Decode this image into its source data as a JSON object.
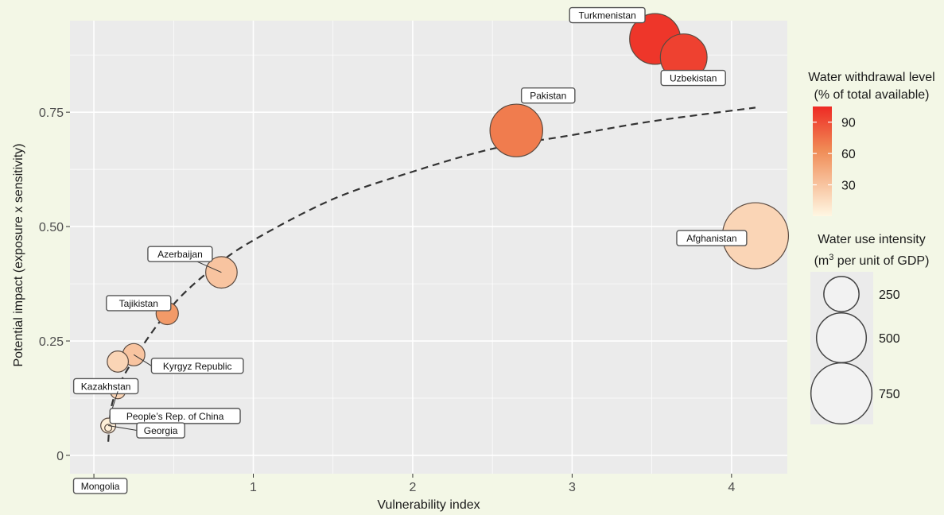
{
  "chart_data": {
    "type": "scatter",
    "xlabel": "Vulnerability index",
    "ylabel": "Potential impact (exposure x sensitivity)",
    "xlim": [
      -0.15,
      4.35
    ],
    "ylim": [
      -0.04,
      0.95
    ],
    "x_ticks": [
      {
        "value": 0,
        "label": "0"
      },
      {
        "value": 1,
        "label": "1"
      },
      {
        "value": 2,
        "label": "2"
      },
      {
        "value": 3,
        "label": "3"
      },
      {
        "value": 4,
        "label": "4"
      }
    ],
    "y_ticks": [
      {
        "value": 0,
        "label": "0"
      },
      {
        "value": 0.25,
        "label": "0.25"
      },
      {
        "value": 0.5,
        "label": "0.50"
      },
      {
        "value": 0.75,
        "label": "0.75"
      }
    ],
    "grid": true,
    "points": [
      {
        "label": "Turkmenistan",
        "x": 3.52,
        "y": 0.91,
        "withdrawal": 100,
        "intensity": 520
      },
      {
        "label": "Uzbekistan",
        "x": 3.7,
        "y": 0.87,
        "withdrawal": 95,
        "intensity": 440
      },
      {
        "label": "Pakistan",
        "x": 2.65,
        "y": 0.71,
        "withdrawal": 70,
        "intensity": 560
      },
      {
        "label": "Afghanistan",
        "x": 4.15,
        "y": 0.48,
        "withdrawal": 20,
        "intensity": 880
      },
      {
        "label": "Azerbaijan",
        "x": 0.8,
        "y": 0.4,
        "withdrawal": 30,
        "intensity": 200
      },
      {
        "label": "Tajikistan",
        "x": 0.46,
        "y": 0.31,
        "withdrawal": 55,
        "intensity": 100
      },
      {
        "label": "Kyrgyz Republic",
        "x": 0.25,
        "y": 0.22,
        "withdrawal": 30,
        "intensity": 100
      },
      {
        "label": "Kazakhstan",
        "x": 0.15,
        "y": 0.205,
        "withdrawal": 20,
        "intensity": 90
      },
      {
        "label": "People’s Rep. of China",
        "x": 0.15,
        "y": 0.14,
        "withdrawal": 20,
        "intensity": 45
      },
      {
        "label": "Georgia",
        "x": 0.09,
        "y": 0.065,
        "withdrawal": 5,
        "intensity": 45
      },
      {
        "label": "Mongolia",
        "x": 0.09,
        "y": 0.06,
        "withdrawal": 5,
        "intensity": 10
      }
    ],
    "trend_line": {
      "style": "dashed",
      "points": [
        [
          0.09,
          0.03
        ],
        [
          0.12,
          0.12
        ],
        [
          0.25,
          0.21
        ],
        [
          0.5,
          0.33
        ],
        [
          0.75,
          0.41
        ],
        [
          1.0,
          0.47
        ],
        [
          1.5,
          0.56
        ],
        [
          2.0,
          0.62
        ],
        [
          2.5,
          0.67
        ],
        [
          3.0,
          0.7
        ],
        [
          3.5,
          0.73
        ],
        [
          4.15,
          0.76
        ]
      ]
    },
    "legend": {
      "color": {
        "title_lines": [
          "Water withdrawal level",
          "(% of total available)"
        ],
        "ticks": [
          {
            "value": 90,
            "label": "90"
          },
          {
            "value": 60,
            "label": "60"
          },
          {
            "value": 30,
            "label": "30"
          }
        ],
        "range": [
          0,
          105
        ],
        "low_color": "#fff7e3",
        "mid_color": "#f08c56",
        "high_color": "#ee2a24"
      },
      "size": {
        "title_line1": "Water use intensity",
        "title_line2_pre": "(m",
        "title_line2_sup": "3",
        "title_line2_post": " per unit of GDP)",
        "entries": [
          {
            "value": 250,
            "label": "250"
          },
          {
            "value": 500,
            "label": "500"
          },
          {
            "value": 750,
            "label": "750"
          }
        ]
      }
    },
    "colors": {
      "panel": "#ebebeb",
      "grid": "#ffffff",
      "point_stroke": "#5a4a40"
    }
  }
}
